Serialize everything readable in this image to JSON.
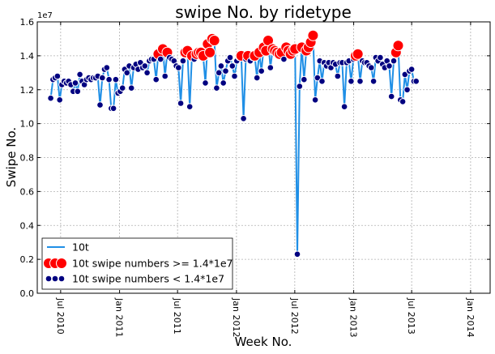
{
  "chart_data": {
    "type": "line",
    "title": "swipe No. by ridetype",
    "xlabel": "Week No.",
    "ylabel": "Swipe No.",
    "y_offset_label": "1e7",
    "y_scale": 10000000,
    "ylim": [
      0.0,
      1.6
    ],
    "xlim": [
      "2010-04-19",
      "2014-03-03"
    ],
    "yticks": [
      "0.0",
      "0.2",
      "0.4",
      "0.6",
      "0.8",
      "1.0",
      "1.2",
      "1.4",
      "1.6"
    ],
    "xticks": [
      {
        "date": "2010-07-01",
        "label": "Jul 2010"
      },
      {
        "date": "2011-01-01",
        "label": "Jan 2011"
      },
      {
        "date": "2011-07-01",
        "label": "Jul 2011"
      },
      {
        "date": "2012-01-01",
        "label": "Jan 2012"
      },
      {
        "date": "2012-07-01",
        "label": "Jul 2012"
      },
      {
        "date": "2013-01-01",
        "label": "Jan 2013"
      },
      {
        "date": "2013-07-01",
        "label": "Jul 2013"
      },
      {
        "date": "2014-01-01",
        "label": "Jan 2014"
      }
    ],
    "grid": true,
    "legend_position": "lower-left",
    "threshold": 1.4,
    "colors": {
      "line": "#1f8fe6",
      "above": "#ff0000",
      "below": "#000080",
      "marker_edge": "#ffffff",
      "grid": "#b0b0b0"
    },
    "series": [
      {
        "name": "10t",
        "start": "2010-05-31",
        "interval_days": 7,
        "values": [
          1.15,
          1.26,
          1.27,
          1.28,
          1.14,
          1.23,
          1.25,
          1.24,
          1.25,
          1.23,
          1.19,
          1.24,
          1.19,
          1.29,
          1.25,
          1.23,
          1.26,
          1.27,
          1.26,
          1.27,
          1.27,
          1.28,
          1.11,
          1.27,
          1.32,
          1.33,
          1.26,
          1.09,
          1.09,
          1.26,
          1.18,
          1.19,
          1.21,
          1.32,
          1.3,
          1.34,
          1.21,
          1.33,
          1.35,
          1.32,
          1.36,
          1.33,
          1.34,
          1.3,
          1.37,
          1.38,
          1.38,
          1.26,
          1.41,
          1.38,
          1.44,
          1.28,
          1.42,
          1.39,
          1.38,
          1.37,
          1.34,
          1.33,
          1.12,
          1.37,
          1.42,
          1.43,
          1.1,
          1.4,
          1.38,
          1.41,
          1.42,
          1.42,
          1.4,
          1.24,
          1.47,
          1.42,
          1.5,
          1.49,
          1.21,
          1.3,
          1.34,
          1.24,
          1.31,
          1.37,
          1.39,
          1.34,
          1.28,
          1.37,
          1.39,
          1.4,
          1.03,
          1.38,
          1.4,
          1.37,
          1.39,
          1.4,
          1.27,
          1.42,
          1.31,
          1.45,
          1.43,
          1.49,
          1.33,
          1.44,
          1.43,
          1.42,
          1.41,
          1.42,
          1.38,
          1.45,
          1.43,
          1.41,
          1.43,
          1.44,
          0.23,
          1.22,
          1.45,
          1.26,
          1.43,
          1.45,
          1.48,
          1.52,
          1.14,
          1.27,
          1.37,
          1.25,
          1.36,
          1.34,
          1.36,
          1.33,
          1.36,
          1.35,
          1.28,
          1.36,
          1.36,
          1.1,
          1.36,
          1.37,
          1.25,
          1.38,
          1.4,
          1.41,
          1.25,
          1.37,
          1.36,
          1.36,
          1.34,
          1.33,
          1.25,
          1.39,
          1.37,
          1.39,
          1.35,
          1.33,
          1.37,
          1.34,
          1.16,
          1.37,
          1.42,
          1.46,
          1.14,
          1.13,
          1.29,
          1.2,
          1.31,
          1.32,
          1.25,
          1.25
        ]
      }
    ],
    "legend": [
      {
        "key": "line",
        "label": "10t"
      },
      {
        "key": "above",
        "label": "10t swipe numbers >= 1.4*1e7"
      },
      {
        "key": "below",
        "label": "10t swipe numbers < 1.4*1e7"
      }
    ]
  }
}
